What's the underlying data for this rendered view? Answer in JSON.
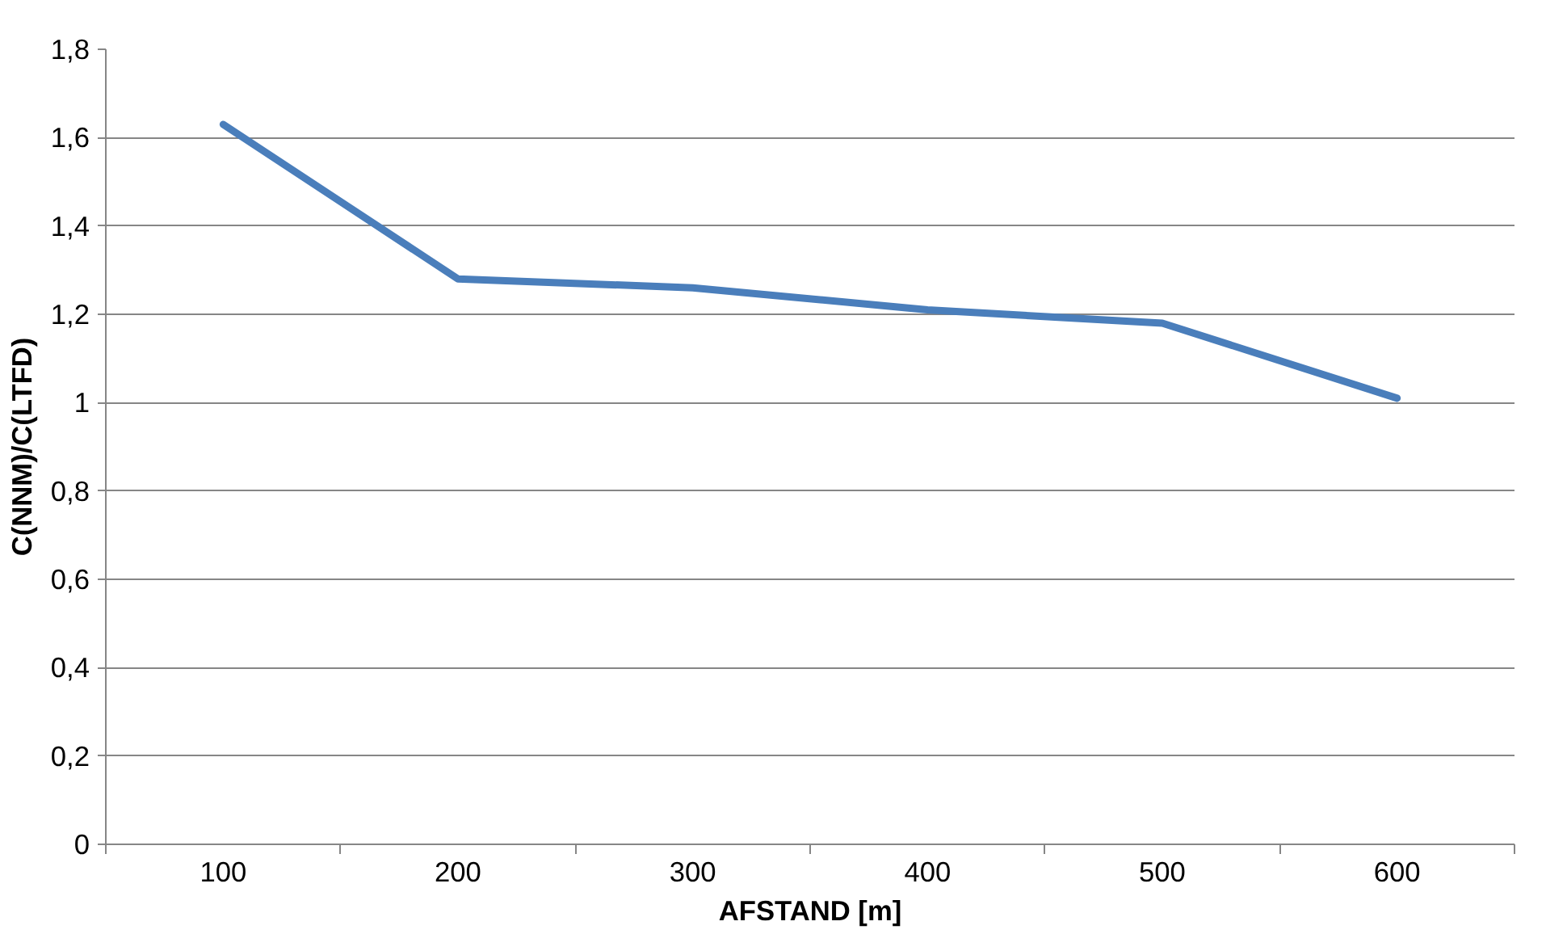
{
  "chart_data": {
    "type": "line",
    "xlabel": "AFSTAND [m]",
    "ylabel": "C(NNM)/C(LTFD)",
    "categories": [
      "100",
      "200",
      "300",
      "400",
      "500",
      "600"
    ],
    "series": [
      {
        "color": "#4a7ebb",
        "values": [
          1.63,
          1.28,
          1.26,
          1.21,
          1.18,
          1.01
        ]
      }
    ],
    "ylim": [
      0,
      1.8
    ],
    "yticks": [
      {
        "value": 0,
        "label": "0"
      },
      {
        "value": 0.2,
        "label": "0,2"
      },
      {
        "value": 0.4,
        "label": "0,4"
      },
      {
        "value": 0.6,
        "label": "0,6"
      },
      {
        "value": 0.8,
        "label": "0,8"
      },
      {
        "value": 1,
        "label": "1"
      },
      {
        "value": 1.2,
        "label": "1,2"
      },
      {
        "value": 1.4,
        "label": "1,4"
      },
      {
        "value": 1.6,
        "label": "1,6"
      },
      {
        "value": 1.8,
        "label": "1,8"
      }
    ],
    "grid": "y",
    "marker": "none",
    "line_style": "solid"
  }
}
